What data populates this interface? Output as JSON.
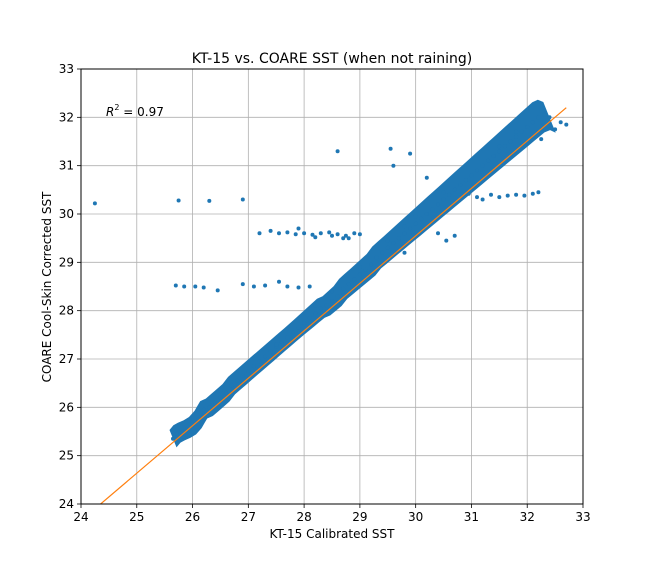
{
  "chart_data": {
    "type": "scatter",
    "title": "KT-15 vs. COARE SST (when not raining)",
    "xlabel": "KT-15 Calibrated SST",
    "ylabel": "COARE Cool-Skin Corrected SST",
    "xlim": [
      24,
      33
    ],
    "ylim": [
      24,
      33
    ],
    "xticks": [
      "24",
      "25",
      "26",
      "27",
      "28",
      "29",
      "30",
      "31",
      "32",
      "33"
    ],
    "yticks": [
      "24",
      "25",
      "26",
      "27",
      "28",
      "29",
      "30",
      "31",
      "32",
      "33"
    ],
    "grid": true,
    "annotation": {
      "prefix": "R",
      "sup": "2",
      "suffix": " = 0.97"
    },
    "colors": {
      "points": "#1f77b4",
      "fit_line": "#ff7f0e"
    },
    "fit_line": {
      "x": [
        24.3,
        32.7
      ],
      "y": [
        23.95,
        32.2
      ]
    },
    "series": [
      {
        "points": [
          [
            25.65,
            25.35
          ],
          [
            25.72,
            25.45
          ],
          [
            25.8,
            25.5
          ],
          [
            25.9,
            25.55
          ],
          [
            26.0,
            25.62
          ],
          [
            26.1,
            25.75
          ],
          [
            26.15,
            25.85
          ],
          [
            26.2,
            25.95
          ],
          [
            26.3,
            26.0
          ],
          [
            26.4,
            26.1
          ],
          [
            26.5,
            26.2
          ],
          [
            26.6,
            26.3
          ],
          [
            26.7,
            26.45
          ],
          [
            26.8,
            26.55
          ],
          [
            26.9,
            26.65
          ],
          [
            27.0,
            26.75
          ],
          [
            27.1,
            26.85
          ],
          [
            27.2,
            26.95
          ],
          [
            27.3,
            27.05
          ],
          [
            27.4,
            27.15
          ],
          [
            27.5,
            27.25
          ],
          [
            27.6,
            27.35
          ],
          [
            27.7,
            27.45
          ],
          [
            27.8,
            27.55
          ],
          [
            27.9,
            27.65
          ],
          [
            28.0,
            27.75
          ],
          [
            28.1,
            27.85
          ],
          [
            28.2,
            27.95
          ],
          [
            28.3,
            28.05
          ],
          [
            28.4,
            28.1
          ],
          [
            28.5,
            28.2
          ],
          [
            28.6,
            28.3
          ],
          [
            28.7,
            28.45
          ],
          [
            28.8,
            28.55
          ],
          [
            28.9,
            28.65
          ],
          [
            29.0,
            28.75
          ],
          [
            29.1,
            28.85
          ],
          [
            29.2,
            28.95
          ],
          [
            29.3,
            29.1
          ],
          [
            29.4,
            29.2
          ],
          [
            29.5,
            29.3
          ],
          [
            29.6,
            29.4
          ],
          [
            29.7,
            29.5
          ],
          [
            29.8,
            29.6
          ],
          [
            29.9,
            29.7
          ],
          [
            30.0,
            29.8
          ],
          [
            30.1,
            29.9
          ],
          [
            30.2,
            30.0
          ],
          [
            30.3,
            30.1
          ],
          [
            30.4,
            30.2
          ],
          [
            30.5,
            30.3
          ],
          [
            30.6,
            30.4
          ],
          [
            30.7,
            30.5
          ],
          [
            30.8,
            30.6
          ],
          [
            30.9,
            30.7
          ],
          [
            31.0,
            30.8
          ],
          [
            31.1,
            30.9
          ],
          [
            31.2,
            31.0
          ],
          [
            31.3,
            31.1
          ],
          [
            31.4,
            31.2
          ],
          [
            31.5,
            31.3
          ],
          [
            31.6,
            31.4
          ],
          [
            31.7,
            31.5
          ],
          [
            31.8,
            31.6
          ],
          [
            31.9,
            31.7
          ],
          [
            32.0,
            31.8
          ],
          [
            32.1,
            31.9
          ],
          [
            32.2,
            32.0
          ],
          [
            32.3,
            32.05
          ],
          [
            32.4,
            32.0
          ],
          [
            26.5,
            26.35
          ],
          [
            27.5,
            27.3
          ],
          [
            28.5,
            28.4
          ],
          [
            29.5,
            29.45
          ],
          [
            30.5,
            30.45
          ],
          [
            31.5,
            31.4
          ],
          [
            29.0,
            28.9
          ],
          [
            30.0,
            29.95
          ],
          [
            28.2,
            28.1
          ],
          [
            29.8,
            29.75
          ],
          [
            24.25,
            30.22
          ],
          [
            25.75,
            30.28
          ],
          [
            26.3,
            30.27
          ],
          [
            26.9,
            30.3
          ],
          [
            28.6,
            31.3
          ],
          [
            29.55,
            31.35
          ],
          [
            29.9,
            31.25
          ],
          [
            29.8,
            29.2
          ],
          [
            28.5,
            29.55
          ],
          [
            28.7,
            29.5
          ],
          [
            27.2,
            29.6
          ],
          [
            27.4,
            29.65
          ],
          [
            27.55,
            29.6
          ],
          [
            27.7,
            29.62
          ],
          [
            27.85,
            29.58
          ],
          [
            28.0,
            29.6
          ],
          [
            28.15,
            29.57
          ],
          [
            28.3,
            29.6
          ],
          [
            28.45,
            29.62
          ],
          [
            28.6,
            29.58
          ],
          [
            28.75,
            29.55
          ],
          [
            28.9,
            29.6
          ],
          [
            29.0,
            29.58
          ],
          [
            28.2,
            29.52
          ],
          [
            28.8,
            29.5
          ],
          [
            27.9,
            29.7
          ],
          [
            25.7,
            28.52
          ],
          [
            25.85,
            28.5
          ],
          [
            26.05,
            28.5
          ],
          [
            26.2,
            28.48
          ],
          [
            26.45,
            28.42
          ],
          [
            26.9,
            28.55
          ],
          [
            27.1,
            28.5
          ],
          [
            27.3,
            28.52
          ],
          [
            27.55,
            28.6
          ],
          [
            27.7,
            28.5
          ],
          [
            27.9,
            28.48
          ],
          [
            28.1,
            28.5
          ],
          [
            31.2,
            30.3
          ],
          [
            31.35,
            30.4
          ],
          [
            31.5,
            30.35
          ],
          [
            31.65,
            30.38
          ],
          [
            31.8,
            30.4
          ],
          [
            31.95,
            30.38
          ],
          [
            32.1,
            30.42
          ],
          [
            32.2,
            30.45
          ],
          [
            31.1,
            30.35
          ],
          [
            30.95,
            30.42
          ],
          [
            30.4,
            29.6
          ],
          [
            30.55,
            29.45
          ],
          [
            30.7,
            29.55
          ],
          [
            29.6,
            31.0
          ],
          [
            30.2,
            30.75
          ],
          [
            32.6,
            31.9
          ],
          [
            32.5,
            31.75
          ],
          [
            32.7,
            31.85
          ],
          [
            32.25,
            31.55
          ],
          [
            31.8,
            31.7
          ]
        ]
      }
    ]
  }
}
